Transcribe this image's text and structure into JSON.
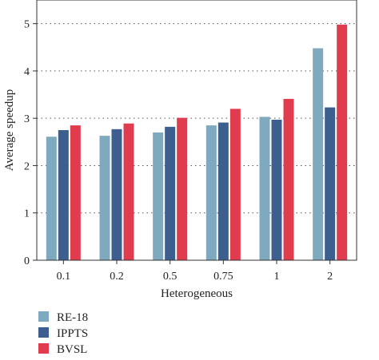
{
  "chart_data": {
    "type": "bar",
    "xlabel": "Heterogeneous",
    "ylabel": "Average speedup",
    "categories": [
      "0.1",
      "0.2",
      "0.5",
      "0.75",
      "1",
      "2"
    ],
    "ylim": [
      0,
      5.5
    ],
    "yticks": [
      "0",
      "1",
      "2",
      "3",
      "4",
      "5"
    ],
    "grid": "horizontal dotted",
    "legend_position": "bottom-left",
    "series": [
      {
        "name": "RE-18",
        "color": "#7fa9be",
        "values": [
          2.61,
          2.63,
          2.7,
          2.85,
          3.03,
          4.48
        ]
      },
      {
        "name": "IPPTS",
        "color": "#3d5f8f",
        "values": [
          2.75,
          2.77,
          2.82,
          2.91,
          2.97,
          3.23
        ]
      },
      {
        "name": "BVSL",
        "color": "#e03c4e",
        "values": [
          2.85,
          2.89,
          3.01,
          3.2,
          3.41,
          4.98
        ]
      }
    ]
  }
}
